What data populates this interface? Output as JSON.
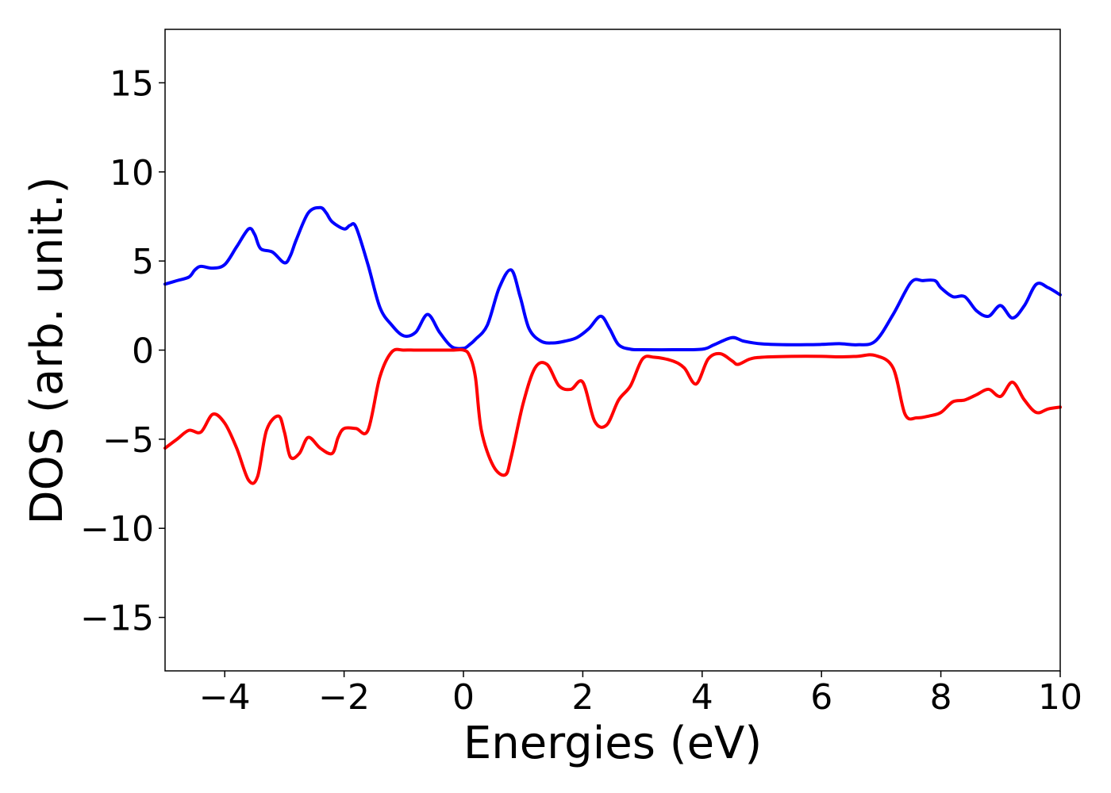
{
  "chart_data": {
    "type": "line",
    "title": "",
    "xlabel": "Energies (eV)",
    "ylabel": "DOS (arb. unit.)",
    "xlim": [
      -5,
      10
    ],
    "ylim": [
      -18,
      18
    ],
    "xticks": [
      -4,
      -2,
      0,
      2,
      4,
      6,
      8,
      10
    ],
    "xtick_labels": [
      "−4",
      "−2",
      "0",
      "2",
      "4",
      "6",
      "8",
      "10"
    ],
    "yticks": [
      15,
      10,
      5,
      0,
      -5,
      -10,
      -15
    ],
    "ytick_labels": [
      "15",
      "10",
      "5",
      "0",
      "−5",
      "−10",
      "−15"
    ],
    "grid": false,
    "legend": "none",
    "series": [
      {
        "color": "#0000ff",
        "x": [
          -5.0,
          -4.8,
          -4.6,
          -4.5,
          -4.4,
          -4.2,
          -4.0,
          -3.8,
          -3.6,
          -3.5,
          -3.4,
          -3.2,
          -3.0,
          -2.9,
          -2.8,
          -2.6,
          -2.4,
          -2.3,
          -2.2,
          -2.0,
          -1.9,
          -1.8,
          -1.6,
          -1.4,
          -1.2,
          -1.0,
          -0.8,
          -0.6,
          -0.4,
          -0.2,
          0.0,
          0.1,
          0.2,
          0.4,
          0.6,
          0.8,
          0.95,
          1.1,
          1.3,
          1.5,
          1.7,
          1.9,
          2.1,
          2.3,
          2.45,
          2.6,
          2.8,
          3.0,
          3.5,
          4.0,
          4.2,
          4.5,
          4.7,
          5.0,
          5.5,
          6.0,
          6.3,
          6.6,
          6.9,
          7.2,
          7.5,
          7.7,
          7.9,
          8.0,
          8.2,
          8.4,
          8.6,
          8.8,
          9.0,
          9.2,
          9.4,
          9.6,
          9.8,
          10.0
        ],
        "y": [
          3.7,
          3.9,
          4.1,
          4.5,
          4.7,
          4.6,
          4.8,
          5.8,
          6.8,
          6.5,
          5.7,
          5.5,
          4.9,
          5.3,
          6.2,
          7.7,
          8.0,
          7.7,
          7.2,
          6.8,
          7.0,
          6.9,
          4.8,
          2.4,
          1.4,
          0.8,
          1.0,
          2.0,
          1.0,
          0.2,
          0.1,
          0.3,
          0.6,
          1.4,
          3.5,
          4.5,
          3.0,
          1.2,
          0.5,
          0.4,
          0.5,
          0.7,
          1.2,
          1.9,
          1.2,
          0.3,
          0.05,
          0.02,
          0.02,
          0.05,
          0.3,
          0.7,
          0.5,
          0.35,
          0.3,
          0.32,
          0.36,
          0.3,
          0.5,
          2.0,
          3.8,
          3.9,
          3.9,
          3.5,
          3.0,
          3.0,
          2.2,
          1.9,
          2.5,
          1.8,
          2.5,
          3.7,
          3.5,
          3.1
        ]
      },
      {
        "color": "#ff0000",
        "x": [
          -5.0,
          -4.8,
          -4.6,
          -4.4,
          -4.2,
          -4.0,
          -3.8,
          -3.6,
          -3.45,
          -3.3,
          -3.1,
          -3.0,
          -2.9,
          -2.75,
          -2.6,
          -2.4,
          -2.2,
          -2.1,
          -2.0,
          -1.8,
          -1.6,
          -1.4,
          -1.2,
          -1.0,
          -0.8,
          -0.5,
          -0.2,
          0.0,
          0.1,
          0.2,
          0.3,
          0.5,
          0.7,
          0.8,
          1.0,
          1.2,
          1.4,
          1.6,
          1.8,
          2.0,
          2.2,
          2.4,
          2.6,
          2.8,
          3.0,
          3.2,
          3.5,
          3.7,
          3.9,
          4.1,
          4.3,
          4.5,
          4.6,
          4.8,
          5.0,
          5.5,
          6.0,
          6.3,
          6.6,
          6.9,
          7.2,
          7.4,
          7.6,
          7.8,
          8.0,
          8.2,
          8.4,
          8.6,
          8.8,
          9.0,
          9.2,
          9.4,
          9.6,
          9.8,
          10.0
        ],
        "y": [
          -5.5,
          -5.0,
          -4.5,
          -4.6,
          -3.6,
          -4.1,
          -5.5,
          -7.3,
          -7.1,
          -4.5,
          -3.7,
          -4.6,
          -6.0,
          -5.8,
          -4.9,
          -5.5,
          -5.8,
          -4.9,
          -4.4,
          -4.4,
          -4.5,
          -1.5,
          -0.1,
          0.0,
          0.0,
          0.0,
          0.0,
          0.0,
          -0.3,
          -1.5,
          -4.5,
          -6.5,
          -7.0,
          -6.0,
          -3.0,
          -1.0,
          -0.8,
          -2.0,
          -2.2,
          -1.8,
          -4.0,
          -4.2,
          -2.8,
          -2.0,
          -0.5,
          -0.4,
          -0.6,
          -1.0,
          -1.9,
          -0.5,
          -0.2,
          -0.6,
          -0.8,
          -0.5,
          -0.4,
          -0.35,
          -0.35,
          -0.38,
          -0.35,
          -0.3,
          -1.0,
          -3.6,
          -3.8,
          -3.7,
          -3.5,
          -2.9,
          -2.8,
          -2.5,
          -2.2,
          -2.6,
          -1.8,
          -2.8,
          -3.5,
          -3.3,
          -3.2
        ]
      }
    ]
  }
}
